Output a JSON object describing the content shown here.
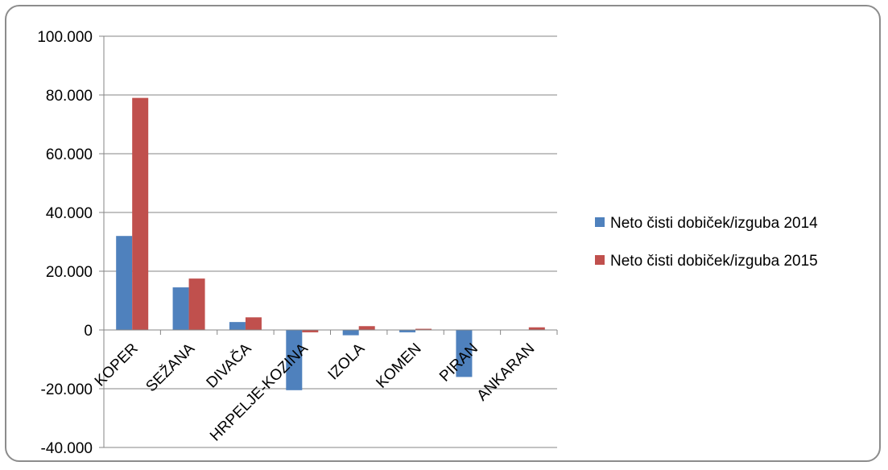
{
  "chart_data": {
    "type": "bar",
    "title": "",
    "xlabel": "",
    "ylabel": "",
    "categories": [
      "KOPER",
      "SEŽANA",
      "DIVAČA",
      "HRPELJE-KOZINA",
      "IZOLA",
      "KOMEN",
      "PIRAN",
      "ANKARAN"
    ],
    "series": [
      {
        "name": "Neto čisti dobiček/izguba 2014",
        "color": "#4f81bd",
        "values": [
          32000,
          14500,
          2700,
          -20500,
          -1800,
          -800,
          -16000,
          0
        ]
      },
      {
        "name": "Neto čisti dobiček/izguba 2015",
        "color": "#c0504d",
        "values": [
          79000,
          17500,
          4300,
          -800,
          1300,
          400,
          0,
          900
        ]
      }
    ],
    "ylim": [
      -40000,
      100000
    ],
    "yticks": [
      -40000,
      -20000,
      0,
      20000,
      40000,
      60000,
      80000,
      100000
    ],
    "ytick_labels": [
      "-40.000",
      "-20.000",
      "0",
      "20.000",
      "40.000",
      "60.000",
      "80.000",
      "100.000"
    ],
    "grid": true,
    "legend": "right"
  }
}
